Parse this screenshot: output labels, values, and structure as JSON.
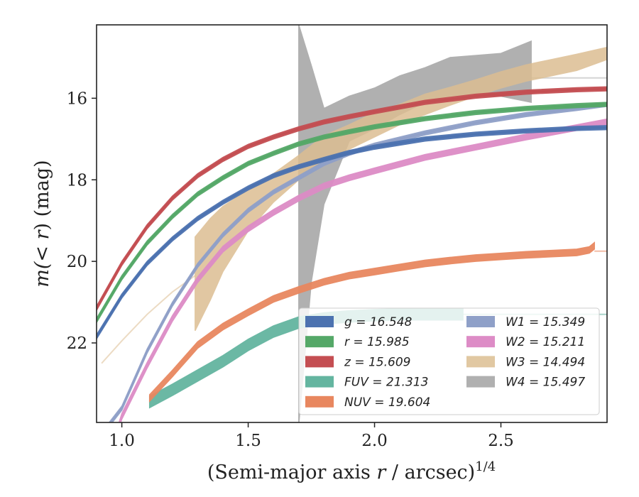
{
  "chart_data": {
    "type": "area",
    "xlabel_prefix": "(Semi-major axis ",
    "xlabel_var": "r",
    "xlabel_mid": " / arcsec)",
    "xlabel_sup": "1/4",
    "ylabel_prefix": "m(",
    "ylabel_var": "< r",
    "ylabel_suffix": ") (mag)",
    "xlim": [
      0.9,
      2.92
    ],
    "ylim": [
      23.95,
      14.2
    ],
    "y_inverted": true,
    "x_ticks": [
      "1.0",
      "1.5",
      "2.0",
      "2.5"
    ],
    "x_tick_values": [
      1.0,
      1.5,
      2.0,
      2.5
    ],
    "y_ticks": [
      "16",
      "18",
      "20",
      "22"
    ],
    "y_tick_values": [
      16,
      18,
      20,
      22
    ],
    "grid": false,
    "legend_position": "bottom-right",
    "series": [
      {
        "name": "g",
        "value": "16.548",
        "legend": "g = 16.548",
        "color": "#4c72b0",
        "x": [
          0.9,
          1.0,
          1.1,
          1.2,
          1.3,
          1.4,
          1.5,
          1.6,
          1.7,
          1.8,
          1.9,
          2.0,
          2.2,
          2.4,
          2.6,
          2.8,
          2.92
        ],
        "y": [
          21.85,
          20.85,
          20.05,
          19.45,
          18.95,
          18.55,
          18.2,
          17.9,
          17.68,
          17.5,
          17.33,
          17.2,
          17.0,
          16.88,
          16.8,
          16.74,
          16.72
        ],
        "band": 0.05
      },
      {
        "name": "r",
        "value": "15.985",
        "legend": "r = 15.985",
        "color": "#55a868",
        "x": [
          0.9,
          1.0,
          1.1,
          1.2,
          1.3,
          1.4,
          1.5,
          1.6,
          1.7,
          1.8,
          1.9,
          2.0,
          2.2,
          2.4,
          2.6,
          2.8,
          2.92
        ],
        "y": [
          21.45,
          20.4,
          19.55,
          18.9,
          18.35,
          17.95,
          17.6,
          17.35,
          17.12,
          16.95,
          16.82,
          16.7,
          16.5,
          16.35,
          16.25,
          16.18,
          16.15
        ],
        "band": 0.05
      },
      {
        "name": "z",
        "value": "15.609",
        "legend": "z = 15.609",
        "color": "#c44e52",
        "x": [
          0.9,
          1.0,
          1.1,
          1.2,
          1.3,
          1.4,
          1.5,
          1.6,
          1.7,
          1.8,
          1.9,
          2.0,
          2.2,
          2.4,
          2.6,
          2.8,
          2.92
        ],
        "y": [
          21.15,
          20.05,
          19.15,
          18.45,
          17.9,
          17.5,
          17.18,
          16.95,
          16.75,
          16.58,
          16.45,
          16.33,
          16.1,
          15.95,
          15.85,
          15.79,
          15.77
        ],
        "band": 0.05
      },
      {
        "name": "FUV",
        "value": "21.313",
        "legend": "FUV = 21.313",
        "color": "#64b5a0",
        "x": [
          1.11,
          1.2,
          1.3,
          1.4,
          1.5,
          1.6,
          1.7,
          1.8,
          1.9,
          2.0,
          2.1,
          2.2,
          2.3,
          2.35
        ],
        "y": [
          23.45,
          23.15,
          22.8,
          22.45,
          22.05,
          21.72,
          21.5,
          21.4,
          21.35,
          21.32,
          21.3,
          21.3,
          21.3,
          21.3
        ],
        "band": 0.14,
        "tail_x": [
          2.35,
          2.5,
          2.7,
          2.92
        ],
        "tail_y": [
          21.3,
          21.3,
          21.3,
          21.3
        ]
      },
      {
        "name": "NUV",
        "value": "19.604",
        "legend": "NUV = 19.604",
        "color": "#e8875f",
        "x": [
          1.11,
          1.2,
          1.3,
          1.4,
          1.5,
          1.6,
          1.7,
          1.8,
          1.9,
          2.0,
          2.1,
          2.2,
          2.3,
          2.4,
          2.5,
          2.6,
          2.7,
          2.8,
          2.85,
          2.87
        ],
        "y": [
          23.35,
          22.75,
          22.05,
          21.6,
          21.25,
          20.92,
          20.7,
          20.5,
          20.35,
          20.25,
          20.15,
          20.05,
          19.98,
          19.92,
          19.88,
          19.84,
          19.81,
          19.78,
          19.72,
          19.62
        ],
        "band": 0.08,
        "tail_x": [
          2.87,
          2.92
        ],
        "tail_y": [
          19.75,
          19.75
        ]
      },
      {
        "name": "W1",
        "value": "15.349",
        "legend": "W1 = 15.349",
        "color": "#8fa0c8",
        "x": [
          0.95,
          1.0,
          1.1,
          1.2,
          1.3,
          1.4,
          1.5,
          1.6,
          1.7,
          1.8,
          1.9,
          2.0,
          2.2,
          2.4,
          2.6,
          2.8,
          2.92
        ],
        "y": [
          24.0,
          23.6,
          22.2,
          21.05,
          20.1,
          19.35,
          18.75,
          18.3,
          17.95,
          17.6,
          17.35,
          17.15,
          16.85,
          16.6,
          16.4,
          16.25,
          16.15
        ],
        "band": 0.05
      },
      {
        "name": "W2",
        "value": "15.211",
        "legend": "W2 = 15.211",
        "color": "#dd8cc6",
        "x": [
          0.99,
          1.0,
          1.1,
          1.2,
          1.3,
          1.4,
          1.5,
          1.6,
          1.7,
          1.8,
          1.9,
          2.0,
          2.2,
          2.4,
          2.6,
          2.8,
          2.92
        ],
        "y": [
          24.0,
          23.8,
          22.55,
          21.4,
          20.45,
          19.7,
          19.2,
          18.8,
          18.45,
          18.15,
          17.95,
          17.78,
          17.45,
          17.2,
          16.95,
          16.72,
          16.58
        ],
        "band": 0.07
      },
      {
        "name": "W3",
        "value": "14.494",
        "legend": "W3 = 14.494",
        "color": "#dcbe92",
        "x": [
          1.29,
          1.35,
          1.4,
          1.5,
          1.6,
          1.7,
          1.8,
          1.9,
          2.0,
          2.1,
          2.2,
          2.3,
          2.4,
          2.5,
          2.6,
          2.7,
          2.8,
          2.92
        ],
        "y": [
          20.55,
          19.95,
          19.45,
          18.75,
          18.2,
          17.7,
          17.2,
          16.95,
          16.65,
          16.4,
          16.15,
          15.95,
          15.75,
          15.55,
          15.38,
          15.25,
          15.12,
          14.9
        ],
        "band_list": [
          1.15,
          1.0,
          0.8,
          0.5,
          0.35,
          0.3,
          0.28,
          0.3,
          0.3,
          0.25,
          0.25,
          0.22,
          0.2,
          0.2,
          0.2,
          0.2,
          0.2,
          0.15
        ],
        "faint_x": [
          0.92,
          1.0,
          1.1,
          1.2,
          1.29
        ],
        "faint_y": [
          22.5,
          21.95,
          21.3,
          20.75,
          20.35
        ]
      },
      {
        "name": "W4",
        "value": "15.497",
        "legend": "W4 = 15.497",
        "color": "#b0b0b0",
        "x": [
          1.7,
          1.75,
          1.8,
          1.9,
          2.0,
          2.1,
          2.2,
          2.3,
          2.4,
          2.5,
          2.62
        ],
        "y_lo": [
          14.2,
          15.2,
          16.25,
          15.95,
          15.75,
          15.45,
          15.25,
          15.0,
          14.95,
          14.9,
          14.6
        ],
        "y_hi": [
          24.0,
          20.5,
          18.6,
          17.05,
          16.75,
          16.4,
          16.1,
          15.95,
          15.9,
          15.95,
          16.1
        ],
        "tail_x": [
          2.2,
          2.4,
          2.6,
          2.92
        ],
        "tail_y": [
          15.5,
          15.5,
          15.5,
          15.5
        ]
      }
    ]
  }
}
